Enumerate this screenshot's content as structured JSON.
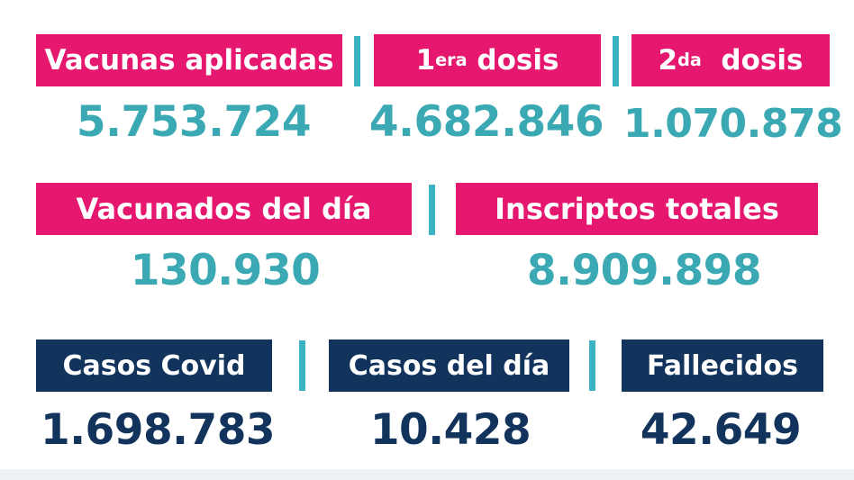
{
  "colors": {
    "pink": "#e5176f",
    "navy": "#12335c",
    "teal": "#3aa9b4"
  },
  "row1": {
    "vacunas_aplicadas": {
      "label": "Vacunas aplicadas",
      "value": "5.753.724"
    },
    "primera_dosis": {
      "label_num": "1",
      "label_sup": "era",
      "label_rest": " dosis",
      "value": "4.682.846"
    },
    "segunda_dosis": {
      "label_num": "2",
      "label_sup": "da",
      "label_rest": "  dosis",
      "value": "1.070.878"
    }
  },
  "row2": {
    "vacunados_del_dia": {
      "label": "Vacunados del día",
      "value": "130.930"
    },
    "inscriptos_totales": {
      "label": "Inscriptos totales",
      "value": "8.909.898"
    }
  },
  "row3": {
    "casos_covid": {
      "label": "Casos Covid",
      "value": "1.698.783"
    },
    "casos_del_dia": {
      "label": "Casos del día",
      "value": "10.428"
    },
    "fallecidos": {
      "label": "Fallecidos",
      "value": "42.649"
    }
  }
}
